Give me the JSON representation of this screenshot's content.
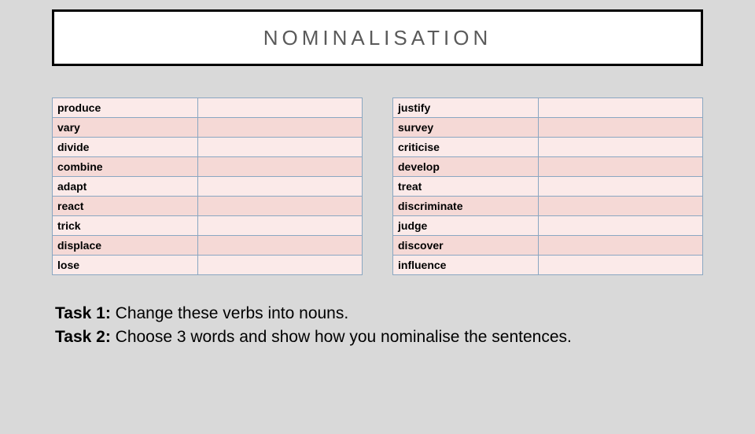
{
  "title": "NOMINALISATION",
  "table_left": {
    "rows": [
      {
        "verb": "produce",
        "noun": ""
      },
      {
        "verb": "vary",
        "noun": ""
      },
      {
        "verb": "divide",
        "noun": ""
      },
      {
        "verb": "combine",
        "noun": ""
      },
      {
        "verb": "adapt",
        "noun": ""
      },
      {
        "verb": "react",
        "noun": ""
      },
      {
        "verb": "trick",
        "noun": ""
      },
      {
        "verb": "displace",
        "noun": ""
      },
      {
        "verb": "lose",
        "noun": ""
      }
    ]
  },
  "table_right": {
    "rows": [
      {
        "verb": "justify",
        "noun": ""
      },
      {
        "verb": "survey",
        "noun": ""
      },
      {
        "verb": "criticise",
        "noun": ""
      },
      {
        "verb": "develop",
        "noun": ""
      },
      {
        "verb": "treat",
        "noun": ""
      },
      {
        "verb": "discriminate",
        "noun": ""
      },
      {
        "verb": "judge",
        "noun": ""
      },
      {
        "verb": "discover",
        "noun": ""
      },
      {
        "verb": "influence",
        "noun": ""
      }
    ]
  },
  "tasks": {
    "task1_label": "Task 1:",
    "task1_text": " Change these verbs into nouns.",
    "task2_label": "Task 2:",
    "task2_text": " Choose 3 words and show how you nominalise the sentences."
  },
  "colors": {
    "page_bg": "#d9d9d9",
    "title_border": "#000000",
    "title_bg": "#ffffff",
    "title_text": "#5a5a5a",
    "cell_border": "#8aa7c2",
    "row_bg": "#fbeae9",
    "row_alt_bg": "#f5d9d6"
  }
}
